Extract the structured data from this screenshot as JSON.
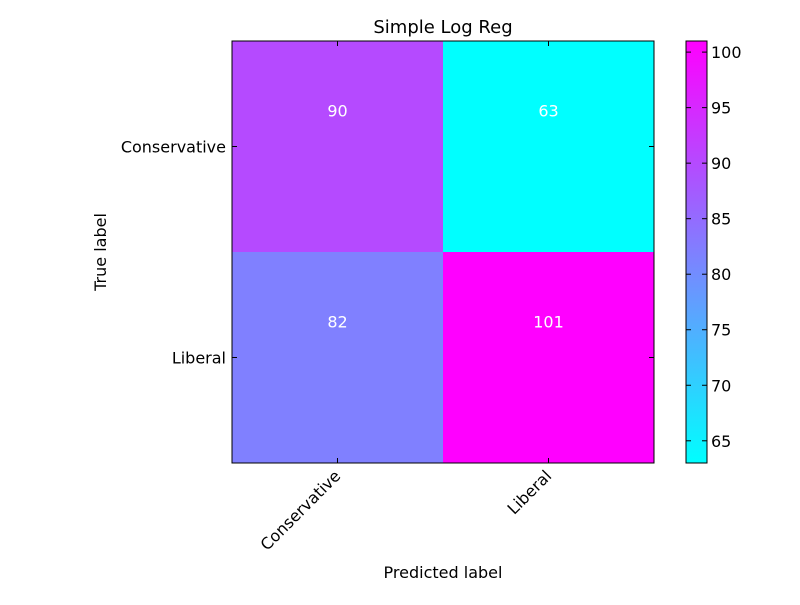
{
  "chart_data": {
    "type": "heatmap",
    "title": "Simple Log Reg",
    "xlabel": "Predicted label",
    "ylabel": "True label",
    "x_categories": [
      "Conservative",
      "Liberal"
    ],
    "y_categories": [
      "Conservative",
      "Liberal"
    ],
    "values": [
      [
        90,
        63
      ],
      [
        82,
        101
      ]
    ],
    "colormap": "cool",
    "colormap_endpoints": [
      "#00ffff",
      "#ff00ff"
    ],
    "colorbar": {
      "range": [
        63,
        101
      ],
      "ticks": [
        65,
        70,
        75,
        80,
        85,
        90,
        95,
        100
      ],
      "tick_labels": [
        "65",
        "70",
        "75",
        "80",
        "85",
        "90",
        "95",
        "100"
      ],
      "placement": "right"
    },
    "cell_text_color": "#ffffff",
    "grid": false
  }
}
